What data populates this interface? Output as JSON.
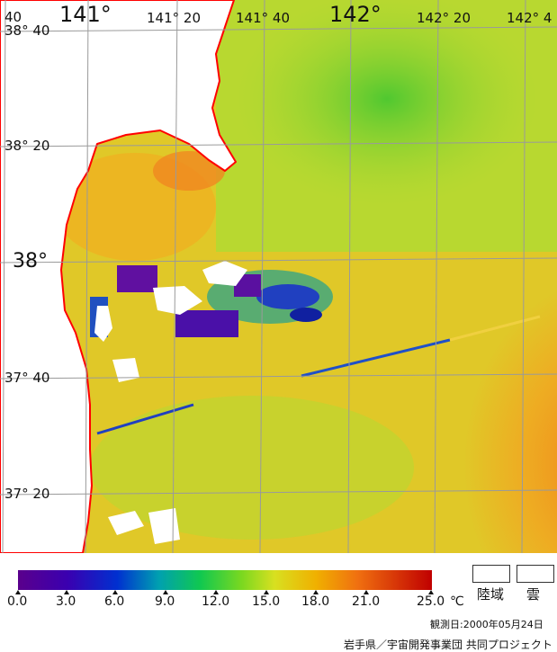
{
  "longitude_labels": [
    "40",
    "141°",
    "141° 20",
    "141° 40",
    "142°",
    "142° 20",
    "142° 4"
  ],
  "latitude_labels": [
    "38° 40",
    "38° 20",
    "38°",
    "37° 40",
    "37° 20"
  ],
  "legend": {
    "ticks": [
      "0.0",
      "3.0",
      "6.0",
      "9.0",
      "12.0",
      "15.0",
      "18.0",
      "21.0",
      "25.0"
    ],
    "unit": "℃",
    "land_label": "陸域",
    "cloud_label": "雲"
  },
  "observation": "観測日:2000年05月24日",
  "credit": "岩手県／宇宙開発事業団  共同プロジェクト",
  "colors": {
    "land": "#ffffff",
    "coastline": "#ff0000",
    "grid": "#9a9a9a"
  }
}
